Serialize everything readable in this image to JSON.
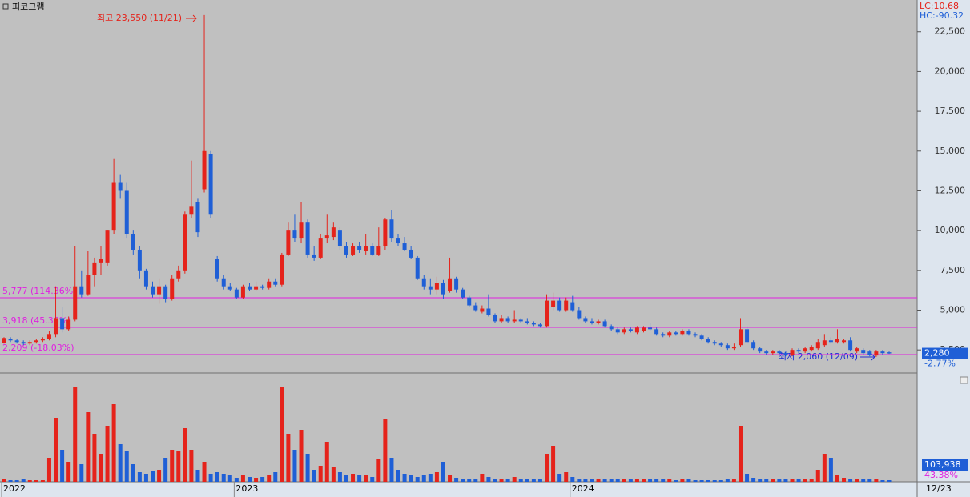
{
  "chart_data": {
    "type": "candlestick",
    "title": "피코그램",
    "lc_label": "LC:10.68",
    "hc_label": "HC:-90.32",
    "high_annotation": "최고 23,550 (11/21)",
    "low_annotation": "최저 2,060 (12/09)",
    "current_price_label": "2,280",
    "current_change_label": "-2.77%",
    "volume_label": "103,938",
    "volume_ratio_label": "43.38%",
    "current_date_label": "12/23",
    "up_color": "#e5231b",
    "down_color": "#1f5fd6",
    "level_color": "#e020e0",
    "ylim": [
      1100,
      24500
    ],
    "yticks": [
      {
        "value": 2500,
        "label": "2,500"
      },
      {
        "value": 5000,
        "label": "5,000"
      },
      {
        "value": 7500,
        "label": "7,500"
      },
      {
        "value": 10000,
        "label": "10,000"
      },
      {
        "value": 12500,
        "label": "12,500"
      },
      {
        "value": 15000,
        "label": "15,000"
      },
      {
        "value": 17500,
        "label": "17,500"
      },
      {
        "value": 20000,
        "label": "20,000"
      },
      {
        "value": 22500,
        "label": "22,500"
      }
    ],
    "levels": [
      {
        "value": 5777,
        "label": "5,777 (114.36%)"
      },
      {
        "value": 3918,
        "label": "3,918 (45.36%)"
      },
      {
        "value": 2209,
        "label": "2,209 (-18.03%)"
      }
    ],
    "volume_ylim": [
      0,
      670000
    ],
    "categories": [
      "2022",
      null,
      null,
      null,
      null,
      null,
      null,
      null,
      null,
      null,
      null,
      null,
      null,
      null,
      null,
      null,
      null,
      null,
      null,
      null,
      null,
      null,
      null,
      null,
      null,
      null,
      null,
      null,
      null,
      null,
      null,
      null,
      null,
      null,
      null,
      null,
      "2023",
      null,
      null,
      null,
      null,
      null,
      null,
      null,
      null,
      null,
      null,
      null,
      null,
      null,
      null,
      null,
      null,
      null,
      null,
      null,
      null,
      null,
      null,
      null,
      null,
      null,
      null,
      null,
      null,
      null,
      null,
      null,
      null,
      null,
      null,
      null,
      null,
      null,
      null,
      null,
      null,
      null,
      null,
      null,
      null,
      null,
      null,
      null,
      null,
      null,
      null,
      null,
      "2024",
      null,
      null,
      null,
      null,
      null,
      null,
      null,
      null,
      null,
      null,
      null,
      null,
      null,
      null,
      null,
      null,
      null,
      null,
      null,
      null,
      null,
      null,
      null,
      null,
      null,
      null,
      null,
      null,
      null,
      null,
      null,
      null,
      null,
      null,
      null,
      null,
      null,
      null,
      null,
      null,
      null,
      null,
      null,
      null,
      null,
      null,
      null,
      null,
      null
    ],
    "candles": [
      [
        2950,
        3300,
        2900,
        3250
      ],
      [
        3200,
        3300,
        3000,
        3100
      ],
      [
        3100,
        3200,
        2900,
        3000
      ],
      [
        3000,
        3100,
        2800,
        2900
      ],
      [
        2900,
        3100,
        2800,
        3000
      ],
      [
        3000,
        3200,
        2900,
        3100
      ],
      [
        3100,
        3300,
        3000,
        3200
      ],
      [
        3200,
        3700,
        3100,
        3500
      ],
      [
        3500,
        6500,
        3300,
        4500
      ],
      [
        4500,
        5200,
        3600,
        3800
      ],
      [
        3800,
        4600,
        3700,
        4400
      ],
      [
        4400,
        9000,
        4300,
        6500
      ],
      [
        6500,
        7500,
        5800,
        6000
      ],
      [
        6000,
        8700,
        5900,
        7200
      ],
      [
        7200,
        8300,
        6500,
        8000
      ],
      [
        8000,
        9000,
        7200,
        8200
      ],
      [
        8000,
        10000,
        7800,
        10000
      ],
      [
        10000,
        14500,
        9800,
        13000
      ],
      [
        13000,
        13500,
        12000,
        12500
      ],
      [
        12500,
        13000,
        9500,
        9800
      ],
      [
        9800,
        10000,
        8500,
        8800
      ],
      [
        8800,
        9000,
        7000,
        7500
      ],
      [
        7500,
        7600,
        6300,
        6500
      ],
      [
        6500,
        6800,
        5800,
        6000
      ],
      [
        6000,
        7000,
        5400,
        6500
      ],
      [
        6500,
        6600,
        5500,
        5700
      ],
      [
        5700,
        7200,
        5600,
        7000
      ],
      [
        7000,
        7800,
        6800,
        7500
      ],
      [
        7500,
        11200,
        7300,
        11000
      ],
      [
        11000,
        14400,
        10800,
        11500
      ],
      [
        11800,
        12000,
        9600,
        9900
      ],
      [
        12600,
        23550,
        12400,
        15000
      ],
      [
        14800,
        15000,
        10800,
        11000
      ],
      [
        8200,
        8400,
        6800,
        7000
      ],
      [
        7000,
        7200,
        6300,
        6500
      ],
      [
        6500,
        6700,
        6200,
        6300
      ],
      [
        6300,
        6400,
        5700,
        5800
      ],
      [
        5800,
        6600,
        5700,
        6500
      ],
      [
        6500,
        6700,
        6200,
        6300
      ],
      [
        6300,
        6800,
        6200,
        6500
      ],
      [
        6500,
        6600,
        6300,
        6400
      ],
      [
        6400,
        7000,
        6300,
        6800
      ],
      [
        6800,
        7000,
        6500,
        6600
      ],
      [
        6600,
        8600,
        6500,
        8500
      ],
      [
        8500,
        10500,
        8400,
        10000
      ],
      [
        10000,
        11000,
        9300,
        9500
      ],
      [
        9500,
        11800,
        9200,
        10500
      ],
      [
        10500,
        10700,
        8300,
        8500
      ],
      [
        8500,
        9000,
        8100,
        8300
      ],
      [
        8300,
        9800,
        8200,
        9500
      ],
      [
        9500,
        11000,
        9200,
        9700
      ],
      [
        9600,
        10500,
        9400,
        10200
      ],
      [
        10000,
        10200,
        8800,
        9000
      ],
      [
        9000,
        9300,
        8300,
        8500
      ],
      [
        8500,
        9200,
        8400,
        9000
      ],
      [
        9000,
        9300,
        8600,
        8800
      ],
      [
        8700,
        9800,
        8500,
        9000
      ],
      [
        9000,
        9200,
        8400,
        8500
      ],
      [
        8500,
        10200,
        8400,
        9000
      ],
      [
        9000,
        10800,
        8800,
        10700
      ],
      [
        10700,
        11300,
        9300,
        9500
      ],
      [
        9500,
        9800,
        9000,
        9200
      ],
      [
        9200,
        9600,
        8700,
        8800
      ],
      [
        8800,
        9000,
        8200,
        8300
      ],
      [
        8300,
        8400,
        6900,
        7000
      ],
      [
        7000,
        7200,
        6300,
        6500
      ],
      [
        6500,
        7000,
        6000,
        6300
      ],
      [
        6300,
        7100,
        6000,
        6700
      ],
      [
        6700,
        6900,
        5700,
        6000
      ],
      [
        6200,
        8300,
        6100,
        7000
      ],
      [
        7000,
        7100,
        6100,
        6300
      ],
      [
        6300,
        6400,
        5700,
        5800
      ],
      [
        5800,
        5900,
        5200,
        5300
      ],
      [
        5300,
        5500,
        4900,
        5000
      ],
      [
        4900,
        5300,
        4800,
        5100
      ],
      [
        5100,
        6000,
        4600,
        4700
      ],
      [
        4700,
        4800,
        4200,
        4300
      ],
      [
        4300,
        4700,
        4200,
        4500
      ],
      [
        4500,
        4600,
        4200,
        4300
      ],
      [
        4300,
        5000,
        4200,
        4400
      ],
      [
        4400,
        4500,
        4200,
        4300
      ],
      [
        4300,
        4500,
        4100,
        4200
      ],
      [
        4200,
        4300,
        4000,
        4100
      ],
      [
        4100,
        4200,
        3900,
        4000
      ],
      [
        4000,
        6000,
        3900,
        5600
      ],
      [
        5200,
        6100,
        5000,
        5600
      ],
      [
        5600,
        5800,
        4900,
        5000
      ],
      [
        5000,
        5800,
        4900,
        5600
      ],
      [
        5500,
        5900,
        4900,
        5000
      ],
      [
        5000,
        5200,
        4400,
        4500
      ],
      [
        4500,
        4600,
        4200,
        4300
      ],
      [
        4300,
        4500,
        4100,
        4200
      ],
      [
        4200,
        4400,
        4100,
        4300
      ],
      [
        4300,
        4400,
        3900,
        4000
      ],
      [
        4000,
        4100,
        3700,
        3800
      ],
      [
        3800,
        3900,
        3500,
        3600
      ],
      [
        3600,
        3900,
        3500,
        3800
      ],
      [
        3800,
        3900,
        3600,
        3700
      ],
      [
        3600,
        4000,
        3500,
        3900
      ],
      [
        3700,
        4000,
        3600,
        3900
      ],
      [
        3900,
        4200,
        3700,
        3800
      ],
      [
        3800,
        3900,
        3400,
        3500
      ],
      [
        3500,
        3600,
        3300,
        3400
      ],
      [
        3400,
        3700,
        3300,
        3600
      ],
      [
        3600,
        3700,
        3400,
        3500
      ],
      [
        3500,
        3800,
        3400,
        3700
      ],
      [
        3700,
        3800,
        3400,
        3500
      ],
      [
        3500,
        3600,
        3300,
        3400
      ],
      [
        3400,
        3500,
        3100,
        3200
      ],
      [
        3200,
        3300,
        2900,
        3000
      ],
      [
        3000,
        3100,
        2800,
        2900
      ],
      [
        2900,
        3000,
        2700,
        2800
      ],
      [
        2800,
        2900,
        2500,
        2600
      ],
      [
        2600,
        2900,
        2500,
        2700
      ],
      [
        2800,
        4500,
        2700,
        3800
      ],
      [
        3800,
        4000,
        2900,
        3000
      ],
      [
        3000,
        3100,
        2500,
        2600
      ],
      [
        2600,
        2700,
        2300,
        2400
      ],
      [
        2400,
        2500,
        2200,
        2300
      ],
      [
        2300,
        2500,
        2200,
        2400
      ],
      [
        2400,
        2500,
        2200,
        2300
      ],
      [
        2300,
        2400,
        2100,
        2200
      ],
      [
        2200,
        2600,
        2100,
        2500
      ],
      [
        2500,
        2600,
        2300,
        2400
      ],
      [
        2400,
        2700,
        2300,
        2600
      ],
      [
        2500,
        2800,
        2400,
        2700
      ],
      [
        2600,
        3200,
        2500,
        3000
      ],
      [
        2800,
        3500,
        2700,
        3100
      ],
      [
        3100,
        3300,
        2900,
        3000
      ],
      [
        3000,
        3800,
        2900,
        3200
      ],
      [
        3000,
        3200,
        2900,
        3100
      ],
      [
        3100,
        3300,
        2400,
        2500
      ],
      [
        2400,
        2700,
        2300,
        2600
      ],
      [
        2500,
        2600,
        2200,
        2300
      ],
      [
        2400,
        2500,
        2100,
        2200
      ],
      [
        2150,
        2500,
        2060,
        2400
      ],
      [
        2400,
        2500,
        2200,
        2300
      ],
      [
        2350,
        2400,
        2250,
        2280
      ]
    ],
    "volume": [
      15000,
      10000,
      10000,
      15000,
      10000,
      10000,
      10000,
      150000,
      400000,
      200000,
      125000,
      590000,
      110000,
      435000,
      300000,
      175000,
      350000,
      485000,
      235000,
      190000,
      110000,
      60000,
      50000,
      65000,
      75000,
      150000,
      200000,
      190000,
      335000,
      200000,
      75000,
      125000,
      50000,
      60000,
      50000,
      40000,
      25000,
      40000,
      30000,
      25000,
      30000,
      40000,
      60000,
      590000,
      300000,
      200000,
      325000,
      175000,
      75000,
      100000,
      250000,
      90000,
      60000,
      40000,
      50000,
      40000,
      40000,
      30000,
      140000,
      390000,
      150000,
      75000,
      50000,
      40000,
      30000,
      40000,
      50000,
      60000,
      125000,
      40000,
      25000,
      20000,
      20000,
      20000,
      50000,
      30000,
      20000,
      20000,
      20000,
      30000,
      20000,
      15000,
      15000,
      15000,
      175000,
      225000,
      50000,
      60000,
      30000,
      20000,
      20000,
      15000,
      15000,
      15000,
      15000,
      15000,
      15000,
      15000,
      20000,
      20000,
      20000,
      15000,
      15000,
      15000,
      10000,
      15000,
      15000,
      10000,
      10000,
      10000,
      10000,
      10000,
      15000,
      20000,
      350000,
      50000,
      25000,
      20000,
      15000,
      15000,
      15000,
      15000,
      20000,
      15000,
      20000,
      15000,
      75000,
      175000,
      150000,
      40000,
      25000,
      20000,
      20000,
      15000,
      15000,
      15000,
      10000,
      10000
    ]
  }
}
